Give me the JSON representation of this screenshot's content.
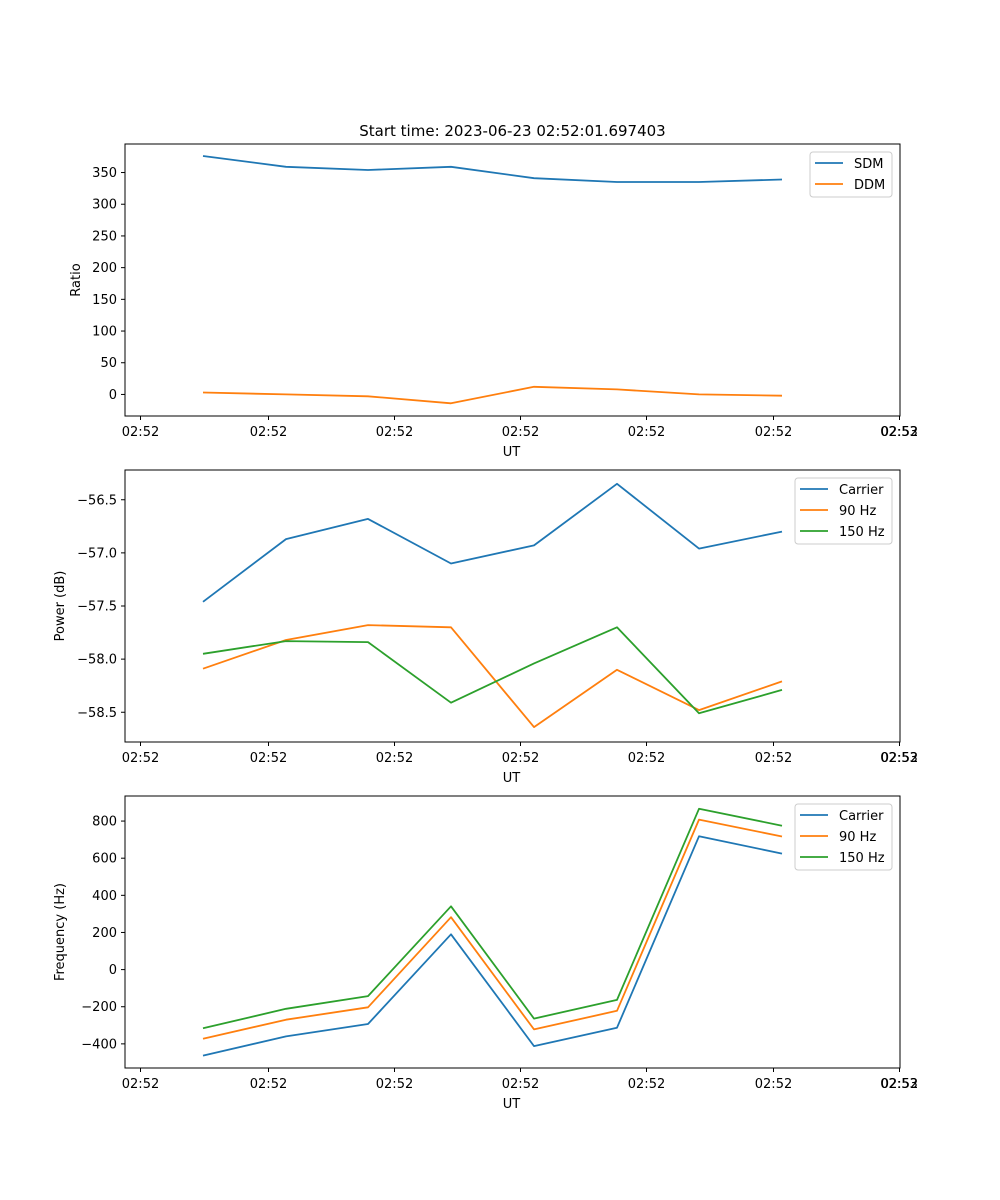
{
  "chart_data": [
    {
      "type": "line",
      "title": "Start time: 2023-06-23 02:52:01.697403",
      "xlabel": "UT",
      "ylabel": "Ratio",
      "x_tick_labels": [
        "02:52",
        "02:52",
        "02:52",
        "02:52",
        "02:52",
        "02:52",
        "02:52",
        "02:53"
      ],
      "y_ticks": [
        0,
        50,
        100,
        150,
        200,
        250,
        300,
        350
      ],
      "ylim": [
        -34,
        395
      ],
      "legend_position": "top-right",
      "series": [
        {
          "name": "SDM",
          "color": "#1f77b4",
          "values": [
            376,
            359,
            354,
            359,
            341,
            335,
            335,
            339
          ]
        },
        {
          "name": "DDM",
          "color": "#ff7f0e",
          "values": [
            3,
            0,
            -3,
            -14,
            12,
            8,
            0,
            -2
          ]
        }
      ]
    },
    {
      "type": "line",
      "title": "",
      "xlabel": "UT",
      "ylabel": "Power (dB)",
      "x_tick_labels": [
        "02:52",
        "02:52",
        "02:52",
        "02:52",
        "02:52",
        "02:52",
        "02:52",
        "02:53"
      ],
      "y_ticks": [
        "−56.5",
        "−57.0",
        "−57.5",
        "−58.0",
        "−58.5"
      ],
      "y_tick_values": [
        -56.5,
        -57.0,
        -57.5,
        -58.0,
        -58.5
      ],
      "ylim": [
        -58.78,
        -56.22
      ],
      "legend_position": "top-right",
      "series": [
        {
          "name": "Carrier",
          "color": "#1f77b4",
          "values": [
            -57.46,
            -56.87,
            -56.68,
            -57.1,
            -56.93,
            -56.35,
            -56.96,
            -56.8
          ]
        },
        {
          "name": "90 Hz",
          "color": "#ff7f0e",
          "values": [
            -58.09,
            -57.82,
            -57.68,
            -57.7,
            -58.64,
            -58.1,
            -58.48,
            -58.21
          ]
        },
        {
          "name": "150 Hz",
          "color": "#2ca02c",
          "values": [
            -57.95,
            -57.83,
            -57.84,
            -58.41,
            -58.04,
            -57.7,
            -58.51,
            -58.29
          ]
        }
      ]
    },
    {
      "type": "line",
      "title": "",
      "xlabel": "UT",
      "ylabel": "Frequency (Hz)",
      "x_tick_labels": [
        "02:52",
        "02:52",
        "02:52",
        "02:52",
        "02:52",
        "02:52",
        "02:52",
        "02:53"
      ],
      "y_ticks": [
        "−400",
        "−200",
        "0",
        "200",
        "400",
        "600",
        "800"
      ],
      "y_tick_values": [
        -400,
        -200,
        0,
        200,
        400,
        600,
        800
      ],
      "ylim": [
        -530,
        935
      ],
      "legend_position": "top-right",
      "series": [
        {
          "name": "Carrier",
          "color": "#1f77b4",
          "values": [
            -463,
            -360,
            -293,
            190,
            -412,
            -313,
            718,
            625
          ]
        },
        {
          "name": "90 Hz",
          "color": "#ff7f0e",
          "values": [
            -372,
            -270,
            -203,
            282,
            -322,
            -222,
            808,
            717
          ]
        },
        {
          "name": "150 Hz",
          "color": "#2ca02c",
          "values": [
            -316,
            -211,
            -143,
            341,
            -264,
            -163,
            866,
            775
          ]
        }
      ]
    }
  ]
}
